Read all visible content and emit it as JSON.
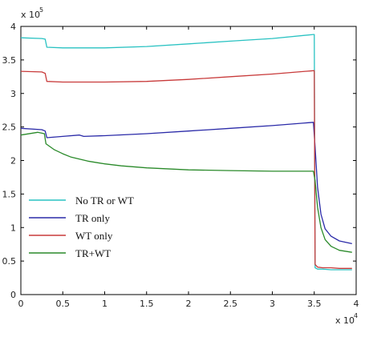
{
  "chart_data": {
    "type": "line",
    "title": "",
    "xlabel": "",
    "ylabel": "",
    "x_multiplier_label": "x 10",
    "x_multiplier_exp": "4",
    "y_multiplier_label": "x 10",
    "y_multiplier_exp": "5",
    "xlim": [
      0,
      40000
    ],
    "ylim": [
      0,
      400000
    ],
    "x_ticks": [
      {
        "value": 0,
        "label": "0"
      },
      {
        "value": 5000,
        "label": "0.5"
      },
      {
        "value": 10000,
        "label": "1"
      },
      {
        "value": 15000,
        "label": "1.5"
      },
      {
        "value": 20000,
        "label": "2"
      },
      {
        "value": 25000,
        "label": "2.5"
      },
      {
        "value": 30000,
        "label": "3"
      },
      {
        "value": 35000,
        "label": "3.5"
      },
      {
        "value": 40000,
        "label": "4"
      }
    ],
    "y_ticks": [
      {
        "value": 0,
        "label": "0"
      },
      {
        "value": 50000,
        "label": "0.5"
      },
      {
        "value": 100000,
        "label": "1"
      },
      {
        "value": 150000,
        "label": "1.5"
      },
      {
        "value": 200000,
        "label": "2"
      },
      {
        "value": 250000,
        "label": "2.5"
      },
      {
        "value": 300000,
        "label": "3"
      },
      {
        "value": 350000,
        "label": "3.5"
      },
      {
        "value": 400000,
        "label": "4"
      }
    ],
    "grid": false,
    "legend_position": "bottom-left",
    "series": [
      {
        "name": "No TR or WT",
        "color": "#29c2c2",
        "x": [
          0,
          2500,
          2900,
          3100,
          5000,
          10000,
          15000,
          20000,
          25000,
          30000,
          34900,
          35000,
          35100,
          35400,
          36000,
          37000,
          38000,
          39500
        ],
        "y": [
          383000,
          382000,
          381000,
          369000,
          368000,
          368000,
          370000,
          374000,
          378000,
          382000,
          388000,
          388000,
          40000,
          38000,
          38000,
          37000,
          37000,
          37000
        ]
      },
      {
        "name": "TR only",
        "color": "#2a2aa8",
        "x": [
          0,
          2500,
          2900,
          3100,
          5000,
          7000,
          7500,
          10000,
          15000,
          20000,
          25000,
          30000,
          34900,
          35100,
          35400,
          35800,
          36300,
          37000,
          38000,
          39500
        ],
        "y": [
          248000,
          246000,
          244000,
          234000,
          236000,
          238000,
          236000,
          237000,
          240000,
          244000,
          248000,
          252000,
          257000,
          220000,
          160000,
          120000,
          98000,
          87000,
          80000,
          76000
        ]
      },
      {
        "name": "WT only",
        "color": "#c83a3a",
        "x": [
          0,
          2500,
          2900,
          3100,
          5000,
          10000,
          15000,
          20000,
          25000,
          30000,
          34900,
          35000,
          35100,
          35400,
          36000,
          37000,
          38000,
          39500
        ],
        "y": [
          333000,
          332000,
          330000,
          318000,
          317000,
          317000,
          318000,
          321000,
          325000,
          329000,
          334000,
          334000,
          45000,
          41000,
          40000,
          40000,
          39000,
          39000
        ]
      },
      {
        "name": "TR+WT",
        "color": "#2a8a2a",
        "x": [
          0,
          2000,
          2800,
          3000,
          4000,
          5000,
          6000,
          7000,
          8000,
          10000,
          12000,
          15000,
          20000,
          25000,
          30000,
          34900,
          35100,
          35400,
          35800,
          36300,
          37000,
          38000,
          39500
        ],
        "y": [
          238000,
          242000,
          240000,
          225000,
          216000,
          210000,
          205000,
          202000,
          199000,
          195000,
          192000,
          189000,
          186000,
          185000,
          184000,
          184000,
          170000,
          130000,
          100000,
          82000,
          72000,
          66000,
          63000
        ]
      }
    ]
  }
}
